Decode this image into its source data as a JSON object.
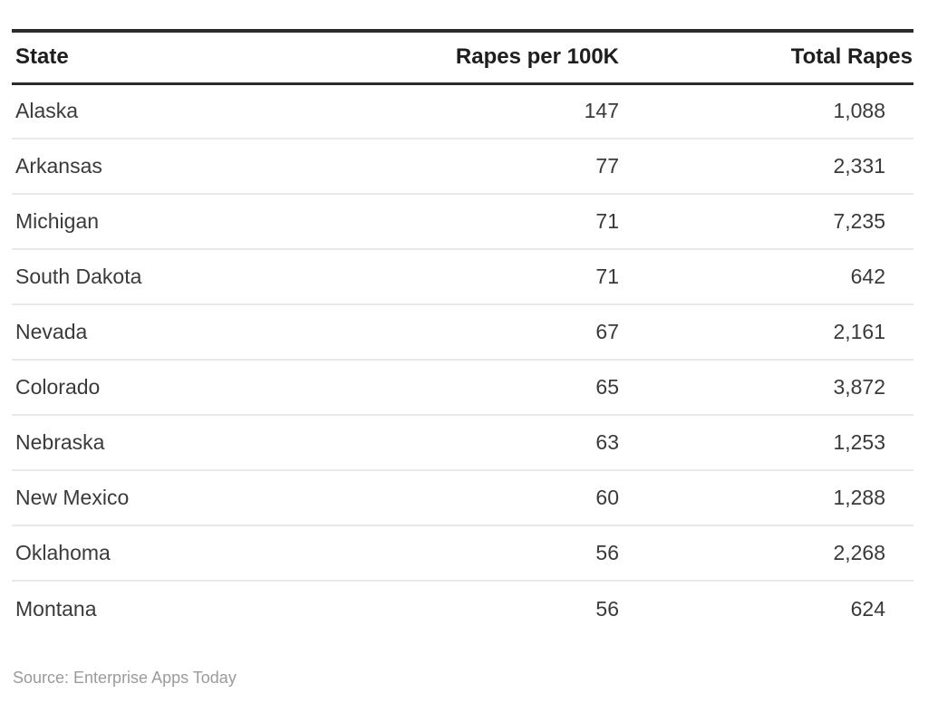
{
  "chart_data": {
    "type": "table",
    "columns": [
      "State",
      "Rapes per 100K",
      "Total Rapes"
    ],
    "rows": [
      [
        "Alaska",
        "147",
        "1,088"
      ],
      [
        "Arkansas",
        "77",
        "2,331"
      ],
      [
        "Michigan",
        "71",
        "7,235"
      ],
      [
        "South Dakota",
        "71",
        "642"
      ],
      [
        "Nevada",
        "67",
        "2,161"
      ],
      [
        "Colorado",
        "65",
        "3,872"
      ],
      [
        "Nebraska",
        "63",
        "1,253"
      ],
      [
        "New Mexico",
        "60",
        "1,288"
      ],
      [
        "Oklahoma",
        "56",
        "2,268"
      ],
      [
        "Montana",
        "56",
        "624"
      ]
    ],
    "values_numeric": {
      "rapes_per_100k": [
        147,
        77,
        71,
        71,
        67,
        65,
        63,
        60,
        56,
        56
      ],
      "total_rapes": [
        1088,
        2331,
        7235,
        642,
        2161,
        3872,
        1253,
        1288,
        2268,
        624
      ]
    }
  },
  "source": "Source: Enterprise Apps Today",
  "colors": {
    "heavy_rule": "#2c2c2c",
    "row_separator": "#e9e9e9",
    "header_text": "#1e1e1e",
    "body_text": "#3a3a3a",
    "source_text": "#9b9b9b",
    "background": "#ffffff"
  }
}
